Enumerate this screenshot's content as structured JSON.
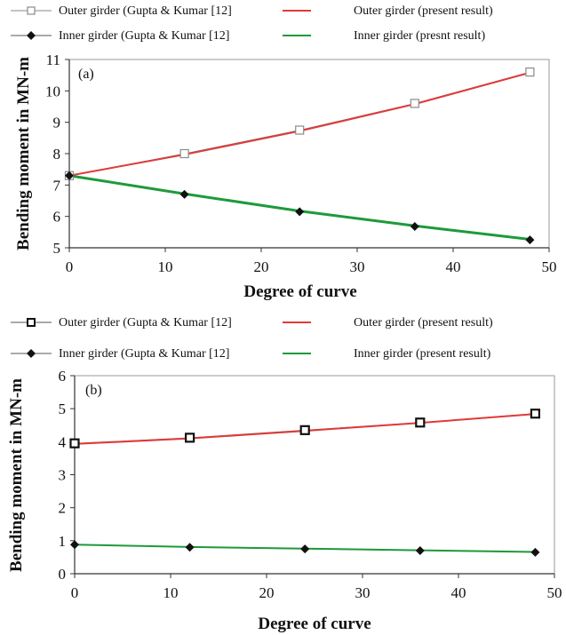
{
  "chart_data": [
    {
      "type": "line",
      "panel_label": "(a)",
      "xlabel": "Degree of curve",
      "ylabel": "Bending moment in MN-m",
      "xlim": [
        0,
        50
      ],
      "ylim": [
        5,
        11
      ],
      "xticks": [
        0,
        10,
        20,
        30,
        40,
        50
      ],
      "yticks": [
        5,
        6,
        7,
        8,
        9,
        10,
        11
      ],
      "grid": false,
      "legend_position": "top",
      "x": [
        0,
        12,
        24,
        36,
        48
      ],
      "series": [
        {
          "name": "Outer girder (Gupta & Kumar [12]",
          "values": [
            7.3,
            8.0,
            8.75,
            9.6,
            10.6
          ],
          "style": "marker",
          "marker": "square",
          "color": "#8a8a8a"
        },
        {
          "name": "Outer girder (present result)",
          "values": [
            7.3,
            7.97,
            8.72,
            9.58,
            10.58
          ],
          "style": "line",
          "color": "#e03a3a"
        },
        {
          "name": "Inner girder (Gupta & Kumar [12]",
          "values": [
            7.3,
            6.7,
            6.15,
            5.68,
            5.25
          ],
          "style": "marker",
          "marker": "diamond",
          "color": "#111111"
        },
        {
          "name": "Inner girder (presnt result)",
          "values": [
            7.3,
            6.72,
            6.17,
            5.7,
            5.27
          ],
          "style": "line",
          "color": "#1e9a3a"
        }
      ]
    },
    {
      "type": "line",
      "panel_label": "(b)",
      "xlabel": "Degree of curve",
      "ylabel": "Bending moment in MN-m",
      "xlim": [
        0,
        50
      ],
      "ylim": [
        0,
        6
      ],
      "xticks": [
        0,
        10,
        20,
        30,
        40,
        50
      ],
      "yticks": [
        0,
        1,
        2,
        3,
        4,
        5,
        6
      ],
      "grid": false,
      "legend_position": "top",
      "x": [
        0,
        12,
        24,
        36,
        48
      ],
      "series": [
        {
          "name": "Outer girder (Gupta & Kumar [12]",
          "values": [
            3.95,
            4.12,
            4.35,
            4.58,
            4.85
          ],
          "style": "marker",
          "marker": "square",
          "color": "#111111"
        },
        {
          "name": "Outer girder (present result)",
          "values": [
            3.93,
            4.1,
            4.33,
            4.57,
            4.84
          ],
          "style": "line",
          "color": "#e03a3a"
        },
        {
          "name": "Inner girder (Gupta & Kumar [12]",
          "values": [
            0.88,
            0.8,
            0.75,
            0.7,
            0.65
          ],
          "style": "marker",
          "marker": "diamond",
          "color": "#111111"
        },
        {
          "name": "Inner girder (present result)",
          "values": [
            0.88,
            0.81,
            0.76,
            0.71,
            0.66
          ],
          "style": "line",
          "color": "#1e9a3a"
        }
      ]
    }
  ]
}
